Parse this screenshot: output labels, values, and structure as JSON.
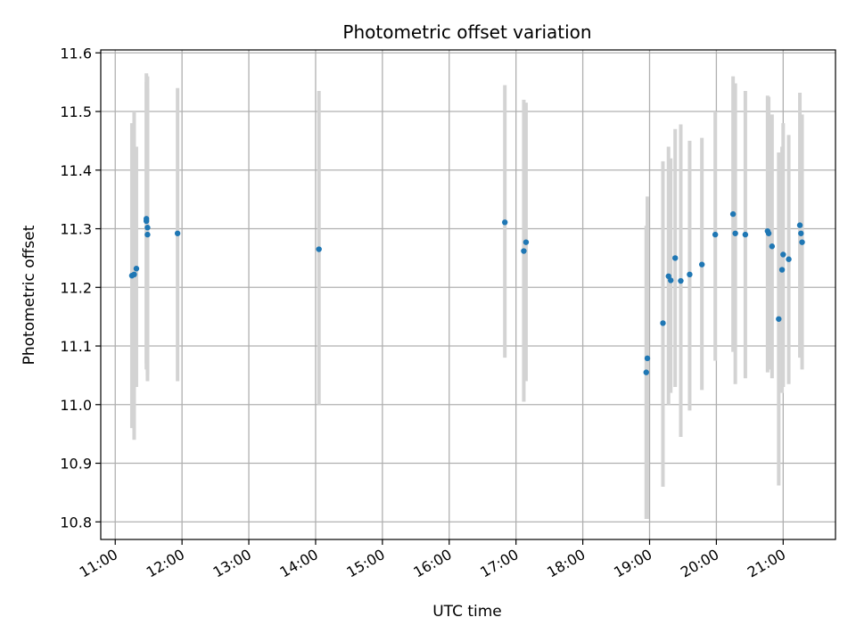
{
  "chart_data": {
    "type": "scatter",
    "title": "Photometric offset variation",
    "xlabel": "UTC time",
    "ylabel": "Photometric offset",
    "xlim": [
      "10:47",
      "21:47"
    ],
    "ylim": [
      10.77,
      11.605
    ],
    "x_ticks": [
      "11:00",
      "12:00",
      "13:00",
      "14:00",
      "15:00",
      "16:00",
      "17:00",
      "18:00",
      "19:00",
      "20:00",
      "21:00"
    ],
    "y_ticks": [
      10.8,
      10.9,
      11.0,
      11.1,
      11.2,
      11.3,
      11.4,
      11.5,
      11.6
    ],
    "grid": true,
    "colors": {
      "points": "#1f77b4",
      "error_bars": "#d3d3d3",
      "grid": "#b0b0b0"
    },
    "points": [
      {
        "x": "11:15",
        "y": 11.22,
        "low": 10.96,
        "high": 11.48
      },
      {
        "x": "11:17",
        "y": 11.222,
        "low": 10.94,
        "high": 11.5
      },
      {
        "x": "11:19",
        "y": 11.232,
        "low": 11.03,
        "high": 11.44
      },
      {
        "x": "11:28",
        "y": 11.317,
        "low": 11.07,
        "high": 11.565
      },
      {
        "x": "11:28",
        "y": 11.313,
        "low": 11.06,
        "high": 11.55
      },
      {
        "x": "11:29",
        "y": 11.302,
        "low": 11.04,
        "high": 11.56
      },
      {
        "x": "11:29",
        "y": 11.29,
        "low": 11.05,
        "high": 11.54
      },
      {
        "x": "11:56",
        "y": 11.292,
        "low": 11.04,
        "high": 11.54
      },
      {
        "x": "14:03",
        "y": 11.265,
        "low": 11.0,
        "high": 11.535
      },
      {
        "x": "16:50",
        "y": 11.311,
        "low": 11.08,
        "high": 11.545
      },
      {
        "x": "17:07",
        "y": 11.262,
        "low": 11.005,
        "high": 11.52
      },
      {
        "x": "17:09",
        "y": 11.277,
        "low": 11.04,
        "high": 11.515
      },
      {
        "x": "18:57",
        "y": 11.055,
        "low": 10.805,
        "high": 11.305
      },
      {
        "x": "18:58",
        "y": 11.079,
        "low": 10.805,
        "high": 11.355
      },
      {
        "x": "19:12",
        "y": 11.139,
        "low": 10.86,
        "high": 11.415
      },
      {
        "x": "19:17",
        "y": 11.219,
        "low": 11.0,
        "high": 11.44
      },
      {
        "x": "19:19",
        "y": 11.212,
        "low": 11.02,
        "high": 11.42
      },
      {
        "x": "19:23",
        "y": 11.25,
        "low": 11.03,
        "high": 11.47
      },
      {
        "x": "19:28",
        "y": 11.211,
        "low": 10.945,
        "high": 11.478
      },
      {
        "x": "19:36",
        "y": 11.222,
        "low": 10.99,
        "high": 11.45
      },
      {
        "x": "19:47",
        "y": 11.239,
        "low": 11.025,
        "high": 11.455
      },
      {
        "x": "19:59",
        "y": 11.29,
        "low": 11.075,
        "high": 11.5
      },
      {
        "x": "20:15",
        "y": 11.325,
        "low": 11.09,
        "high": 11.56
      },
      {
        "x": "20:17",
        "y": 11.292,
        "low": 11.035,
        "high": 11.548
      },
      {
        "x": "20:26",
        "y": 11.29,
        "low": 11.045,
        "high": 11.535
      },
      {
        "x": "20:46",
        "y": 11.296,
        "low": 11.055,
        "high": 11.527
      },
      {
        "x": "20:47",
        "y": 11.292,
        "low": 11.06,
        "high": 11.525
      },
      {
        "x": "20:50",
        "y": 11.27,
        "low": 11.045,
        "high": 11.495
      },
      {
        "x": "20:56",
        "y": 11.146,
        "low": 10.862,
        "high": 11.43
      },
      {
        "x": "20:59",
        "y": 11.23,
        "low": 11.02,
        "high": 11.44
      },
      {
        "x": "21:00",
        "y": 11.256,
        "low": 11.03,
        "high": 11.48
      },
      {
        "x": "21:05",
        "y": 11.248,
        "low": 11.035,
        "high": 11.46
      },
      {
        "x": "21:15",
        "y": 11.306,
        "low": 11.08,
        "high": 11.532
      },
      {
        "x": "21:16",
        "y": 11.292,
        "low": 11.095,
        "high": 11.49
      },
      {
        "x": "21:17",
        "y": 11.277,
        "low": 11.06,
        "high": 11.495
      }
    ]
  }
}
